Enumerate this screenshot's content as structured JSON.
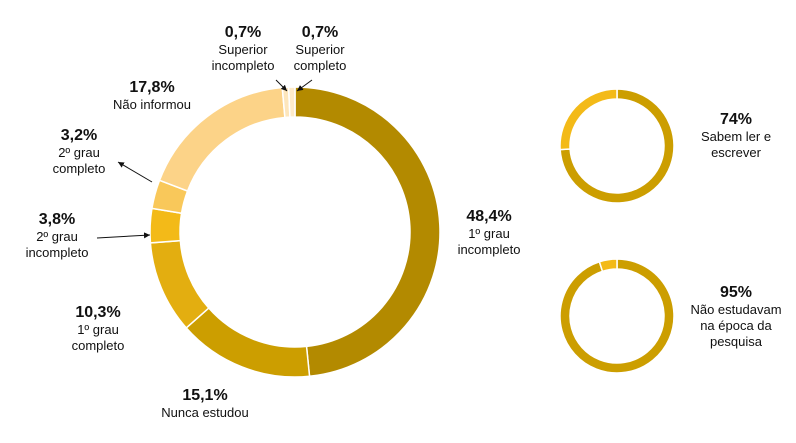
{
  "chart_data": [
    {
      "type": "pie",
      "style": "donut",
      "slices": [
        {
          "label": "1º grau incompleto",
          "value": 48.4,
          "pct_text": "48,4%",
          "label_lines": [
            "1º grau",
            "incompleto"
          ],
          "color": "#B38A00"
        },
        {
          "label": "Nunca estudou",
          "value": 15.1,
          "pct_text": "15,1%",
          "label_lines": [
            "Nunca estudou"
          ],
          "color": "#CC9E00"
        },
        {
          "label": "1º grau completo",
          "value": 10.3,
          "pct_text": "10,3%",
          "label_lines": [
            "1º grau",
            "completo"
          ],
          "color": "#E3AE10"
        },
        {
          "label": "2º grau incompleto",
          "value": 3.8,
          "pct_text": "3,8%",
          "label_lines": [
            "2º grau",
            "incompleto"
          ],
          "color": "#F3BA18"
        },
        {
          "label": "2º grau completo",
          "value": 3.2,
          "pct_text": "3,2%",
          "label_lines": [
            "2º grau",
            "completo"
          ],
          "color": "#F9C85A"
        },
        {
          "label": "Não informou",
          "value": 17.8,
          "pct_text": "17,8%",
          "label_lines": [
            "Não informou"
          ],
          "color": "#FCD388"
        },
        {
          "label": "Superior incompleto",
          "value": 0.7,
          "pct_text": "0,7%",
          "label_lines": [
            "Superior",
            "incompleto"
          ],
          "color": "#FDE6BC"
        },
        {
          "label": "Superior completo",
          "value": 0.7,
          "pct_text": "0,7%",
          "label_lines": [
            "Superior",
            "completo"
          ],
          "color": "#FEEBC9"
        }
      ]
    },
    {
      "type": "pie",
      "style": "donut",
      "pct_text": "74%",
      "label_lines": [
        "Sabem ler e",
        "escrever"
      ],
      "value": 74,
      "main_color": "#CC9E00",
      "rest_color": "#F3BA18"
    },
    {
      "type": "pie",
      "style": "donut",
      "pct_text": "95%",
      "label_lines": [
        "Não estudavam",
        "na época da",
        "pesquisa"
      ],
      "value": 95,
      "main_color": "#CC9E00",
      "rest_color": "#F3BA18"
    }
  ]
}
